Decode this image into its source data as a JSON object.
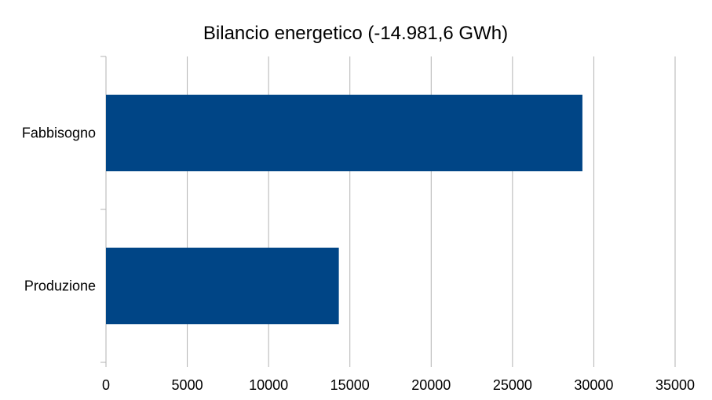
{
  "chart_data": {
    "type": "bar",
    "orientation": "horizontal",
    "title": "Bilancio energetico (-14.981,6 GWh)",
    "categories": [
      "Fabbisogno",
      "Produzione"
    ],
    "values": [
      29300,
      14320
    ],
    "xlim": [
      0,
      35000
    ],
    "xticks": [
      "0",
      "5000",
      "10000",
      "15000",
      "20000",
      "25000",
      "30000",
      "35000"
    ],
    "grid": true,
    "legend": "none",
    "bar_color": "#004586",
    "grid_color": "#b3b3b3"
  }
}
